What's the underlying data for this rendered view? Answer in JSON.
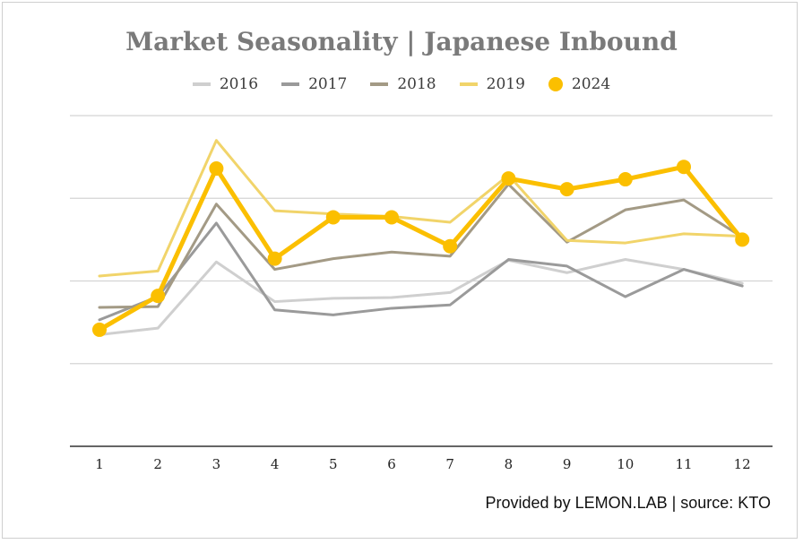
{
  "chart_data": {
    "type": "line",
    "title": "Market Seasonality | Japanese Inbound",
    "xlabel": "",
    "ylabel": "",
    "categories": [
      "1",
      "2",
      "3",
      "4",
      "5",
      "6",
      "7",
      "8",
      "9",
      "10",
      "11",
      "12"
    ],
    "ylim": [
      0,
      4
    ],
    "grid": true,
    "legend_position": "top-center",
    "series": [
      {
        "name": "2016",
        "color": "#cfcfcf",
        "width": 3,
        "markers": false,
        "values": [
          1.35,
          1.43,
          2.23,
          1.75,
          1.79,
          1.8,
          1.86,
          2.25,
          2.1,
          2.26,
          2.14,
          1.97
        ]
      },
      {
        "name": "2017",
        "color": "#9a9a9a",
        "width": 3,
        "markers": false,
        "values": [
          1.53,
          1.81,
          2.7,
          1.65,
          1.59,
          1.67,
          1.71,
          2.26,
          2.18,
          1.81,
          2.14,
          1.94
        ]
      },
      {
        "name": "2018",
        "color": "#a39a85",
        "width": 3,
        "markers": false,
        "values": [
          1.68,
          1.69,
          2.93,
          2.14,
          2.27,
          2.35,
          2.3,
          3.17,
          2.47,
          2.86,
          2.98,
          2.53
        ]
      },
      {
        "name": "2019",
        "color": "#f1d46a",
        "width": 3,
        "markers": false,
        "values": [
          2.06,
          2.12,
          3.7,
          2.85,
          2.81,
          2.78,
          2.71,
          3.28,
          2.49,
          2.46,
          2.57,
          2.54
        ]
      },
      {
        "name": "2024",
        "color": "#fbbf00",
        "width": 5,
        "markers": true,
        "values": [
          1.41,
          1.82,
          3.36,
          2.27,
          2.77,
          2.77,
          2.42,
          3.24,
          3.11,
          3.23,
          3.38,
          2.5
        ]
      }
    ]
  },
  "footer": "Provided by LEMON.LAB | source: KTO"
}
